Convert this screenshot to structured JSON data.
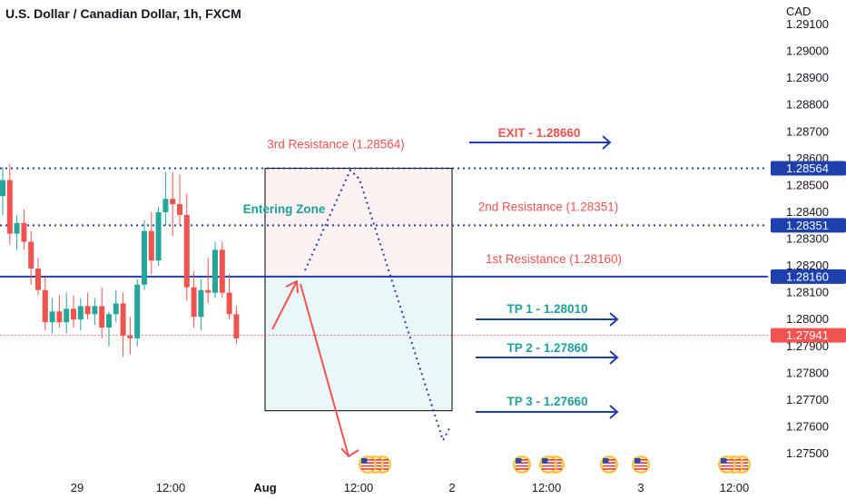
{
  "header": {
    "title": "U.S. Dollar / Canadian Dollar, 1h, FXCM",
    "currency": "CAD"
  },
  "chart_data": {
    "type": "candlestick",
    "ylim": [
      1.2745,
      1.2918
    ],
    "price_ticks": [
      "1.29100",
      "1.29000",
      "1.28900",
      "1.28800",
      "1.28700",
      "1.28600",
      "1.28500",
      "1.28400",
      "1.28300",
      "1.28200",
      "1.28100",
      "1.28000",
      "1.27900",
      "1.27800",
      "1.27700",
      "1.27600",
      "1.27500"
    ],
    "time_ticks": [
      "29",
      "12:00",
      "Aug",
      "12:00",
      "2",
      "12:00",
      "3",
      "12:00"
    ],
    "price_labels": [
      {
        "value": 1.28564,
        "text": "1.28564",
        "color": "#1e3fae"
      },
      {
        "value": 1.28351,
        "text": "1.28351",
        "color": "#1e3fae"
      },
      {
        "value": 1.2816,
        "text": "1.28160",
        "color": "#1e3fae"
      },
      {
        "value": 1.27941,
        "text": "1.27941",
        "color": "#f05350"
      }
    ],
    "candles": [
      {
        "o": 1.2846,
        "h": 1.2857,
        "l": 1.2839,
        "c": 1.2852
      },
      {
        "o": 1.2852,
        "h": 1.2858,
        "l": 1.2828,
        "c": 1.2832
      },
      {
        "o": 1.2832,
        "h": 1.2839,
        "l": 1.2826,
        "c": 1.2836
      },
      {
        "o": 1.2836,
        "h": 1.2841,
        "l": 1.2826,
        "c": 1.2829
      },
      {
        "o": 1.2829,
        "h": 1.2833,
        "l": 1.2813,
        "c": 1.2819
      },
      {
        "o": 1.2819,
        "h": 1.2823,
        "l": 1.2809,
        "c": 1.2811
      },
      {
        "o": 1.2811,
        "h": 1.2816,
        "l": 1.2796,
        "c": 1.2799
      },
      {
        "o": 1.2799,
        "h": 1.2808,
        "l": 1.2795,
        "c": 1.2803
      },
      {
        "o": 1.2803,
        "h": 1.2809,
        "l": 1.2797,
        "c": 1.2799
      },
      {
        "o": 1.2799,
        "h": 1.281,
        "l": 1.2795,
        "c": 1.2804
      },
      {
        "o": 1.2804,
        "h": 1.2809,
        "l": 1.2797,
        "c": 1.28
      },
      {
        "o": 1.28,
        "h": 1.2808,
        "l": 1.2796,
        "c": 1.2805
      },
      {
        "o": 1.2805,
        "h": 1.281,
        "l": 1.28,
        "c": 1.2802
      },
      {
        "o": 1.2802,
        "h": 1.2808,
        "l": 1.2798,
        "c": 1.2805
      },
      {
        "o": 1.2805,
        "h": 1.2812,
        "l": 1.2793,
        "c": 1.2797
      },
      {
        "o": 1.2797,
        "h": 1.2803,
        "l": 1.279,
        "c": 1.2802
      },
      {
        "o": 1.2802,
        "h": 1.2811,
        "l": 1.2799,
        "c": 1.2806
      },
      {
        "o": 1.2806,
        "h": 1.281,
        "l": 1.2786,
        "c": 1.2794
      },
      {
        "o": 1.2794,
        "h": 1.2801,
        "l": 1.2787,
        "c": 1.2793
      },
      {
        "o": 1.2793,
        "h": 1.2815,
        "l": 1.279,
        "c": 1.2813
      },
      {
        "o": 1.2813,
        "h": 1.2837,
        "l": 1.2811,
        "c": 1.2833
      },
      {
        "o": 1.2833,
        "h": 1.284,
        "l": 1.2817,
        "c": 1.2822
      },
      {
        "o": 1.2822,
        "h": 1.2842,
        "l": 1.282,
        "c": 1.284
      },
      {
        "o": 1.284,
        "h": 1.2855,
        "l": 1.2835,
        "c": 1.2845
      },
      {
        "o": 1.2845,
        "h": 1.2855,
        "l": 1.2831,
        "c": 1.2843
      },
      {
        "o": 1.2843,
        "h": 1.2854,
        "l": 1.2835,
        "c": 1.2839
      },
      {
        "o": 1.2839,
        "h": 1.2847,
        "l": 1.2807,
        "c": 1.2812
      },
      {
        "o": 1.2812,
        "h": 1.2818,
        "l": 1.2797,
        "c": 1.2801
      },
      {
        "o": 1.2801,
        "h": 1.2815,
        "l": 1.2796,
        "c": 1.2811
      },
      {
        "o": 1.2811,
        "h": 1.2823,
        "l": 1.2806,
        "c": 1.281
      },
      {
        "o": 1.281,
        "h": 1.2829,
        "l": 1.2808,
        "c": 1.2826
      },
      {
        "o": 1.2826,
        "h": 1.2829,
        "l": 1.2808,
        "c": 1.281
      },
      {
        "o": 1.281,
        "h": 1.2817,
        "l": 1.28,
        "c": 1.2802
      },
      {
        "o": 1.2802,
        "h": 1.2805,
        "l": 1.2791,
        "c": 1.2793
      }
    ],
    "levels": [
      {
        "value": 1.28564,
        "label": "3rd Resistance (1.28564)",
        "label_color": "#f05350",
        "line_color": "#1e3fae",
        "style": "dotted"
      },
      {
        "value": 1.28351,
        "label": "2nd Resistance (1.28351)",
        "label_color": "#f05350",
        "line_color": "#1e3fae",
        "style": "dotted"
      },
      {
        "value": 1.2816,
        "label": "1st Resistance (1.28160)",
        "label_color": "#f05350",
        "line_color": "#1e3fae",
        "style": "solid"
      },
      {
        "value": 1.27941,
        "label": "",
        "line_color": "#f05350",
        "style": "dotted"
      }
    ],
    "zones": {
      "upper": {
        "from": 1.2816,
        "to": 1.28564,
        "color": "#fdf1f1"
      },
      "lower": {
        "from": 1.2766,
        "to": 1.2816,
        "color": "#eaf7f9"
      }
    },
    "entering_zone_label": "Entering Zone",
    "targets": [
      {
        "label": "EXIT - 1.28660",
        "value": 1.2866,
        "color": "#f05350"
      },
      {
        "label": "TP 1 - 1.28010",
        "value": 1.2801,
        "color": "#1fa09a"
      },
      {
        "label": "TP 2 - 1.27860",
        "value": 1.2786,
        "color": "#1fa09a"
      },
      {
        "label": "TP 3 - 1.27660",
        "value": 1.2766,
        "color": "#1fa09a"
      }
    ],
    "colors": {
      "up": "#26a69a",
      "down": "#ef5350",
      "axis_text": "#131722",
      "projection": "#1e3fae",
      "arrow": "#f05350"
    }
  }
}
